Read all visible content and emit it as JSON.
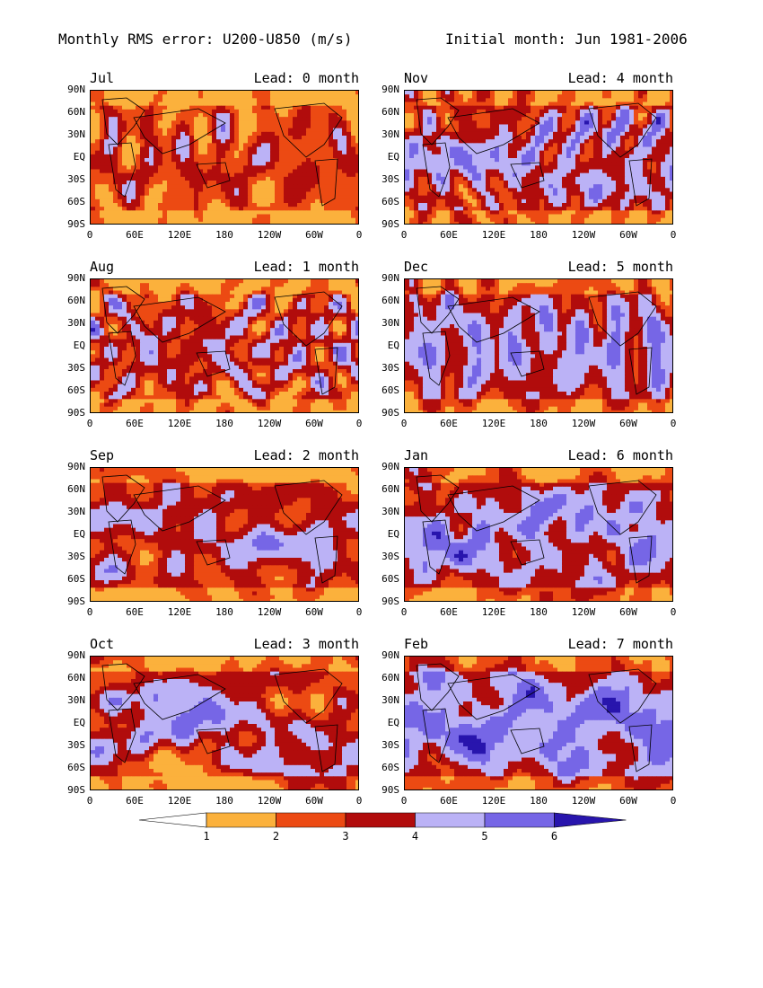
{
  "header": {
    "title_left": "Monthly RMS error: U200-U850 (m/s)",
    "title_right": "Initial month: Jun 1981-2006"
  },
  "lat_ticks": [
    "90N",
    "60N",
    "30N",
    "EQ",
    "30S",
    "60S",
    "90S"
  ],
  "lon_ticks": [
    "0",
    "60E",
    "120E",
    "180",
    "120W",
    "60W",
    "0"
  ],
  "panels": [
    {
      "month": "Jul",
      "lead": "Lead: 0 month",
      "mean_level": 2.6,
      "seed": 11
    },
    {
      "month": "Nov",
      "lead": "Lead: 4 month",
      "mean_level": 3.6,
      "seed": 23
    },
    {
      "month": "Aug",
      "lead": "Lead: 1 month",
      "mean_level": 3.1,
      "seed": 37
    },
    {
      "month": "Dec",
      "lead": "Lead: 5 month",
      "mean_level": 3.8,
      "seed": 41
    },
    {
      "month": "Sep",
      "lead": "Lead: 2 month",
      "mean_level": 3.3,
      "seed": 53
    },
    {
      "month": "Jan",
      "lead": "Lead: 6 month",
      "mean_level": 3.9,
      "seed": 67
    },
    {
      "month": "Oct",
      "lead": "Lead: 3 month",
      "mean_level": 3.4,
      "seed": 79
    },
    {
      "month": "Feb",
      "lead": "Lead: 7 month",
      "mean_level": 4.3,
      "seed": 83
    }
  ],
  "colorbar": {
    "labels": [
      "1",
      "2",
      "3",
      "4",
      "5",
      "6"
    ],
    "colors": [
      "#ffffff",
      "#fbb13c",
      "#ec4a13",
      "#b10c0c",
      "#bbb2f6",
      "#7666e6",
      "#2815ad"
    ]
  }
}
